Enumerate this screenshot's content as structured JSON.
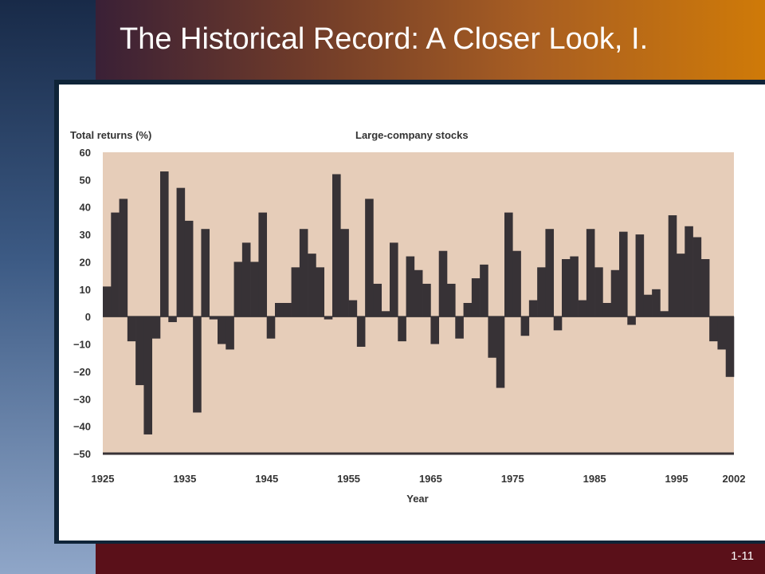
{
  "slide": {
    "title": "The Historical Record: A Closer Look, I.",
    "number": "1-11"
  },
  "colors": {
    "plot_background": "#e6cdb9",
    "bar": "#373236",
    "header_end": "#cf7a08",
    "footer": "#5a1019"
  },
  "chart_data": {
    "type": "bar",
    "title": "Large-company stocks",
    "ylabel": "Total returns (%)",
    "xlabel": "Year",
    "ylim": [
      -50,
      60
    ],
    "yticks": [
      60,
      50,
      40,
      30,
      20,
      10,
      0,
      -10,
      -20,
      -30,
      -40,
      -50
    ],
    "yticklabels": [
      "60",
      "50",
      "40",
      "30",
      "20",
      "10",
      "0",
      "−10",
      "−20",
      "−30",
      "−40",
      "−50"
    ],
    "xticks": [
      1925,
      1935,
      1945,
      1955,
      1965,
      1975,
      1985,
      1995,
      2002
    ],
    "xticklabels": [
      "1925",
      "1935",
      "1945",
      "1955",
      "1965",
      "1975",
      "1985",
      "1995",
      "2002"
    ],
    "grid": false,
    "x": [
      1926,
      1927,
      1928,
      1929,
      1930,
      1931,
      1932,
      1933,
      1934,
      1935,
      1936,
      1937,
      1938,
      1939,
      1940,
      1941,
      1942,
      1943,
      1944,
      1945,
      1946,
      1947,
      1948,
      1949,
      1950,
      1951,
      1952,
      1953,
      1954,
      1955,
      1956,
      1957,
      1958,
      1959,
      1960,
      1961,
      1962,
      1963,
      1964,
      1965,
      1966,
      1967,
      1968,
      1969,
      1970,
      1971,
      1972,
      1973,
      1974,
      1975,
      1976,
      1977,
      1978,
      1979,
      1980,
      1981,
      1982,
      1983,
      1984,
      1985,
      1986,
      1987,
      1988,
      1989,
      1990,
      1991,
      1992,
      1993,
      1994,
      1995,
      1996,
      1997,
      1998,
      1999,
      2000,
      2001,
      2002
    ],
    "values": [
      11,
      38,
      43,
      -9,
      -25,
      -43,
      -8,
      53,
      -2,
      47,
      35,
      -35,
      32,
      -1,
      -10,
      -12,
      20,
      27,
      20,
      38,
      -8,
      5,
      5,
      18,
      32,
      23,
      18,
      -1,
      52,
      32,
      6,
      -11,
      43,
      12,
      2,
      27,
      -9,
      22,
      17,
      12,
      -10,
      24,
      12,
      -8,
      5,
      14,
      19,
      -15,
      -26,
      38,
      24,
      -7,
      6,
      18,
      32,
      -5,
      21,
      22,
      6,
      32,
      18,
      5,
      17,
      31,
      -3,
      30,
      8,
      10,
      2,
      37,
      23,
      33,
      29,
      21,
      -9,
      -12,
      -22
    ]
  }
}
